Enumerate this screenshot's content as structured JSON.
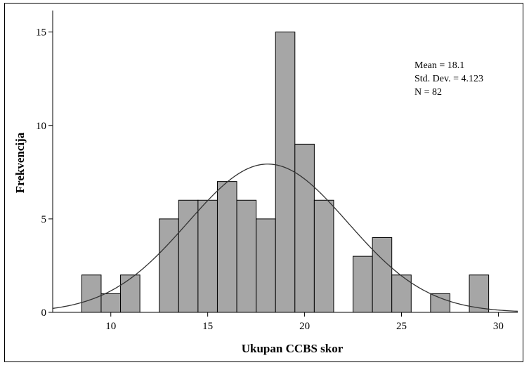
{
  "chart_data": {
    "type": "bar",
    "subtype": "histogram",
    "xlabel": "Ukupan CCBS skor",
    "ylabel": "Frekvencija",
    "xlim": [
      7,
      31
    ],
    "ylim": [
      0,
      16
    ],
    "x_ticks": [
      10,
      15,
      20,
      25,
      30
    ],
    "y_ticks": [
      0,
      5,
      10,
      15
    ],
    "bin_width": 1,
    "bins": [
      {
        "x": 9,
        "count": 2
      },
      {
        "x": 10,
        "count": 1
      },
      {
        "x": 11,
        "count": 2
      },
      {
        "x": 13,
        "count": 5
      },
      {
        "x": 14,
        "count": 6
      },
      {
        "x": 15,
        "count": 6
      },
      {
        "x": 16,
        "count": 7
      },
      {
        "x": 17,
        "count": 6
      },
      {
        "x": 18,
        "count": 5
      },
      {
        "x": 19,
        "count": 15
      },
      {
        "x": 20,
        "count": 9
      },
      {
        "x": 21,
        "count": 6
      },
      {
        "x": 23,
        "count": 3
      },
      {
        "x": 24,
        "count": 4
      },
      {
        "x": 25,
        "count": 2
      },
      {
        "x": 27,
        "count": 1
      },
      {
        "x": 29,
        "count": 2
      }
    ],
    "normal_curve": {
      "mean": 18.1,
      "sd": 4.123,
      "n": 82
    },
    "stats": {
      "mean": "Mean = 18.1",
      "sd": "Std. Dev. = 4.123",
      "n": "N = 82"
    },
    "colors": {
      "bar_fill": "#a6a6a6",
      "bar_stroke": "#000000",
      "curve": "#333333"
    }
  }
}
